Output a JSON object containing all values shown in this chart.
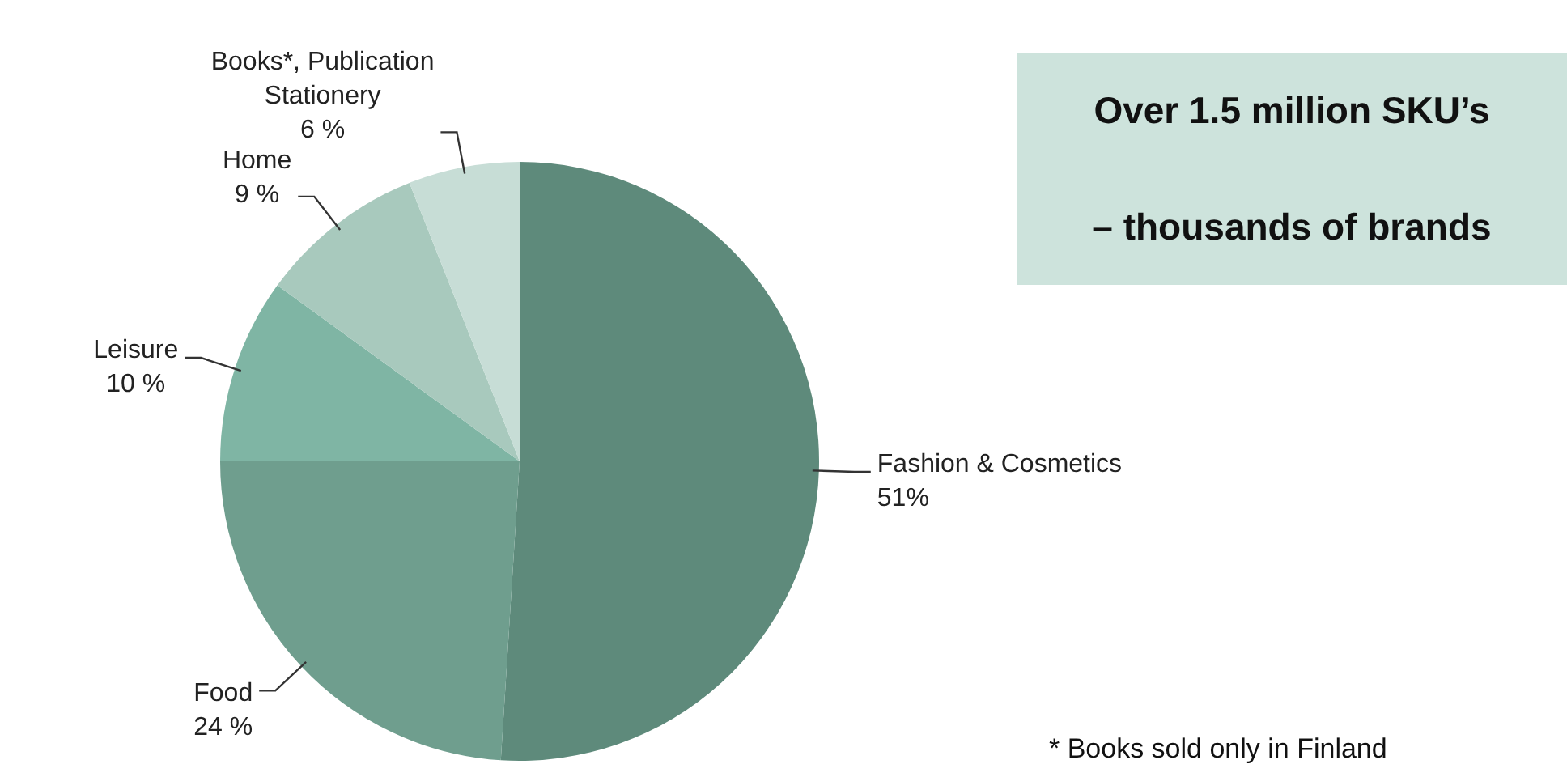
{
  "chart_data": {
    "type": "pie",
    "categories": [
      "Fashion & Cosmetics",
      "Food",
      "Leisure",
      "Home",
      "Books*, Publication Stationery"
    ],
    "values": [
      51,
      24,
      10,
      9,
      6
    ],
    "value_labels": [
      "51%",
      "24 %",
      "10 %",
      "9 %",
      "6 %"
    ],
    "colors": [
      "#5e8a7b",
      "#6f9e8e",
      "#7fb5a4",
      "#a8c9bd",
      "#c7ddd6"
    ],
    "legend": false,
    "annotations": [
      "Over 1.5 million SKU’s",
      "– thousands of brands",
      "* Books sold only in Finland"
    ]
  }
}
